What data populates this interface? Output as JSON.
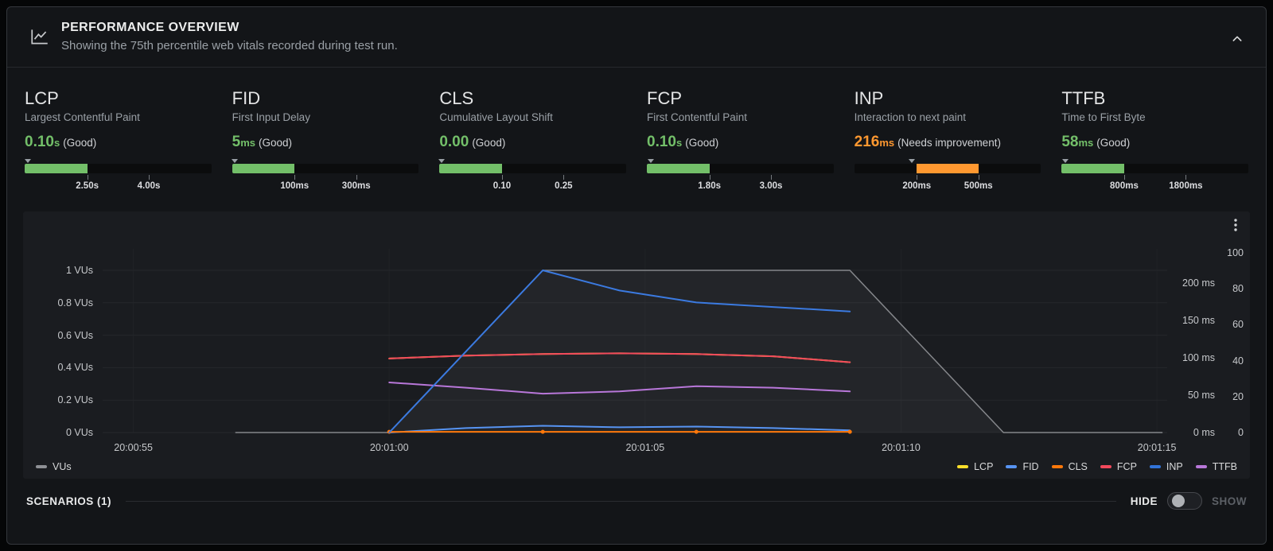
{
  "header": {
    "title": "PERFORMANCE OVERVIEW",
    "subtitle": "Showing the 75th percentile web vitals recorded during test run."
  },
  "metrics": [
    {
      "id": "lcp",
      "name": "LCP",
      "description": "Largest Contentful Paint",
      "value": "0.10",
      "unit": "s",
      "status": "(Good)",
      "status_color": "#73bf69",
      "thresholds": [
        "2.50s",
        "4.00s"
      ],
      "gauge": {
        "start_pct": 0,
        "end_pct": 33.5,
        "color": "#73bf69"
      },
      "marker_pct": 1.5
    },
    {
      "id": "fid",
      "name": "FID",
      "description": "First Input Delay",
      "value": "5",
      "unit": "ms",
      "status": "(Good)",
      "status_color": "#73bf69",
      "thresholds": [
        "100ms",
        "300ms"
      ],
      "gauge": {
        "start_pct": 0,
        "end_pct": 33.5,
        "color": "#73bf69"
      },
      "marker_pct": 1.5
    },
    {
      "id": "cls",
      "name": "CLS",
      "description": "Cumulative Layout Shift",
      "value": "0.00",
      "unit": "",
      "status": "(Good)",
      "status_color": "#73bf69",
      "thresholds": [
        "0.10",
        "0.25"
      ],
      "gauge": {
        "start_pct": 0,
        "end_pct": 33.5,
        "color": "#73bf69"
      },
      "marker_pct": 1
    },
    {
      "id": "fcp",
      "name": "FCP",
      "description": "First Contentful Paint",
      "value": "0.10",
      "unit": "s",
      "status": "(Good)",
      "status_color": "#73bf69",
      "thresholds": [
        "1.80s",
        "3.00s"
      ],
      "gauge": {
        "start_pct": 0,
        "end_pct": 33.5,
        "color": "#73bf69"
      },
      "marker_pct": 2
    },
    {
      "id": "inp",
      "name": "INP",
      "description": "Interaction to next paint",
      "value": "216",
      "unit": "ms",
      "status": "(Needs improvement)",
      "status_color": "#ff9830",
      "thresholds": [
        "200ms",
        "500ms"
      ],
      "gauge": {
        "start_pct": 33.5,
        "end_pct": 66.5,
        "color": "#ff9830"
      },
      "marker_pct": 31
    },
    {
      "id": "ttfb",
      "name": "TTFB",
      "description": "Time to First Byte",
      "value": "58",
      "unit": "ms",
      "status": "(Good)",
      "status_color": "#73bf69",
      "thresholds": [
        "800ms",
        "1800ms"
      ],
      "gauge": {
        "start_pct": 0,
        "end_pct": 33.5,
        "color": "#73bf69"
      },
      "marker_pct": 2
    }
  ],
  "chart_data": {
    "type": "line",
    "x_axis": {
      "domain": [
        54.4,
        75.2
      ],
      "ticks": [
        {
          "t": 55,
          "label": "20:00:55"
        },
        {
          "t": 60,
          "label": "20:01:00"
        },
        {
          "t": 65,
          "label": "20:01:05"
        },
        {
          "t": 70,
          "label": "20:01:10"
        },
        {
          "t": 75,
          "label": "20:01:15"
        }
      ]
    },
    "y_axis_left": {
      "unit": "VUs",
      "ticks": [
        {
          "v": 1,
          "label": "1 VUs"
        },
        {
          "v": 0.8,
          "label": "0.8 VUs"
        },
        {
          "v": 0.6,
          "label": "0.6 VUs"
        },
        {
          "v": 0.4,
          "label": "0.4 VUs"
        },
        {
          "v": 0.2,
          "label": "0.2 VUs"
        },
        {
          "v": 0,
          "label": "0 VUs"
        }
      ]
    },
    "y_axis_right_ms": {
      "ticks": [
        {
          "v": 200,
          "label": "200 ms"
        },
        {
          "v": 150,
          "label": "150 ms"
        },
        {
          "v": 100,
          "label": "100 ms"
        },
        {
          "v": 50,
          "label": "50 ms"
        },
        {
          "v": 0,
          "label": "0 ms"
        }
      ]
    },
    "y_axis_right_score": {
      "ticks": [
        {
          "v": 100,
          "label": "100"
        },
        {
          "v": 80,
          "label": "80"
        },
        {
          "v": 60,
          "label": "60"
        },
        {
          "v": 40,
          "label": "40"
        },
        {
          "v": 20,
          "label": "20"
        },
        {
          "v": 0,
          "label": "0"
        }
      ]
    },
    "series": [
      {
        "name": "VUs",
        "color": "#85878b",
        "axis": "vu",
        "area": true,
        "points": [
          [
            57,
            0
          ],
          [
            60,
            0
          ],
          [
            63,
            1
          ],
          [
            69,
            1
          ],
          [
            72,
            0
          ],
          [
            75.1,
            0
          ]
        ]
      },
      {
        "name": "LCP",
        "color": "#fade2a",
        "axis": "ms",
        "points": [
          [
            60,
            99
          ],
          [
            61.5,
            103
          ],
          [
            63,
            105
          ],
          [
            64.5,
            106
          ],
          [
            66,
            105
          ],
          [
            67.5,
            102
          ],
          [
            69,
            94
          ]
        ]
      },
      {
        "name": "FCP",
        "color": "#f2495c",
        "axis": "ms",
        "points": [
          [
            60,
            99
          ],
          [
            61.5,
            103
          ],
          [
            63,
            105
          ],
          [
            64.5,
            106
          ],
          [
            66,
            105
          ],
          [
            67.5,
            102
          ],
          [
            69,
            94
          ]
        ]
      },
      {
        "name": "TTFB",
        "color": "#b877d9",
        "axis": "ms",
        "points": [
          [
            60,
            67
          ],
          [
            61.5,
            60
          ],
          [
            63,
            52
          ],
          [
            64.5,
            55
          ],
          [
            66,
            62
          ],
          [
            67.5,
            60
          ],
          [
            69,
            55
          ]
        ]
      },
      {
        "name": "FID",
        "color": "#5794f2",
        "axis": "ms",
        "points": [
          [
            60,
            0
          ],
          [
            61.5,
            6
          ],
          [
            63,
            9
          ],
          [
            64.5,
            7
          ],
          [
            66,
            8
          ],
          [
            67.5,
            6
          ],
          [
            69,
            3
          ]
        ]
      },
      {
        "name": "CLS",
        "color": "#ff780a",
        "axis": "ms",
        "markers": true,
        "points": [
          [
            60,
            1
          ],
          [
            63,
            1
          ],
          [
            66,
            1
          ],
          [
            69,
            1
          ]
        ]
      },
      {
        "name": "INP",
        "color": "#3b7ae0",
        "axis": "ms",
        "points": [
          [
            60,
            0
          ],
          [
            63,
            217
          ],
          [
            64.5,
            190
          ],
          [
            66,
            174
          ],
          [
            67.5,
            168
          ],
          [
            69,
            162
          ]
        ]
      }
    ],
    "legend_left": [
      {
        "label": "VUs",
        "color": "#8e9095"
      }
    ],
    "legend_right": [
      {
        "label": "LCP",
        "color": "#fade2a"
      },
      {
        "label": "FID",
        "color": "#5794f2"
      },
      {
        "label": "CLS",
        "color": "#ff780a"
      },
      {
        "label": "FCP",
        "color": "#f2495c"
      },
      {
        "label": "INP",
        "color": "#3274d9"
      },
      {
        "label": "TTFB",
        "color": "#b877d9"
      }
    ]
  },
  "footer": {
    "scenarios_label": "SCENARIOS (1)",
    "hide_label": "HIDE",
    "show_label": "SHOW"
  }
}
